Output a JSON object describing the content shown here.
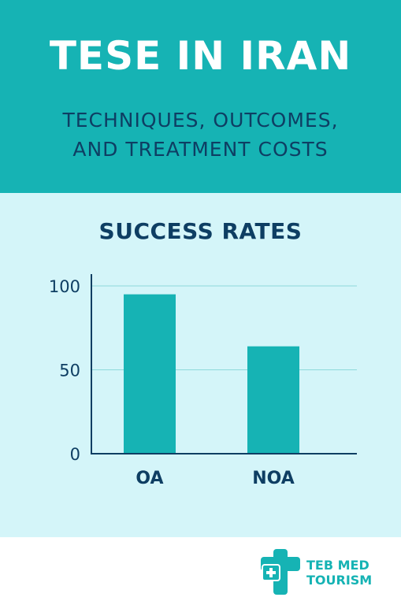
{
  "header": {
    "title": "TESE IN IRAN",
    "subtitle_line1": "TECHNIQUES, OUTCOMES,",
    "subtitle_line2": "AND TREATMENT COSTS"
  },
  "chart_data": {
    "type": "bar",
    "title": "SUCCESS RATES",
    "categories": [
      "OA",
      "NOA"
    ],
    "values": [
      95,
      64
    ],
    "ylim": [
      0,
      100
    ],
    "yticks": [
      0,
      50,
      100
    ],
    "grid": true,
    "xlabel": "",
    "ylabel": ""
  },
  "footer": {
    "logo_icon": "medical-cross-logo-icon",
    "brand_line1": "TEB MED",
    "brand_line2": "TOURISM"
  },
  "colors": {
    "header_bg": "#16b3b4",
    "panel_bg": "#d4f5f9",
    "bar": "#16b3b4",
    "text_dark": "#0e3e63",
    "grid": "#8ed9db"
  }
}
